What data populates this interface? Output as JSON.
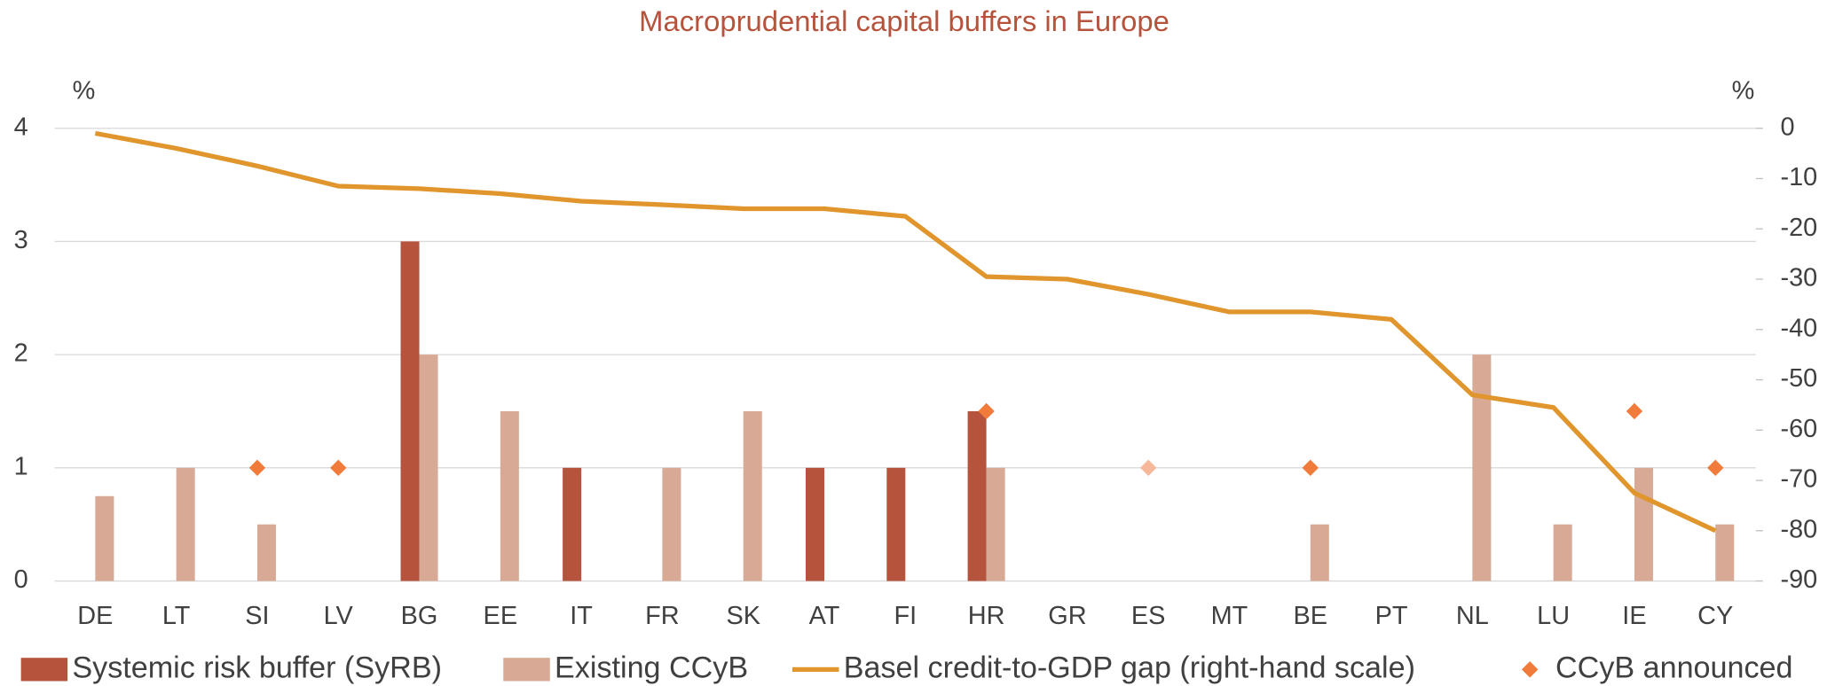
{
  "chart_data": {
    "type": "bar-line",
    "title": "Macroprudential capital buffers in Europe",
    "ylabel": "%",
    "y2label": "%",
    "categories": [
      "DE",
      "LT",
      "SI",
      "LV",
      "BG",
      "EE",
      "IT",
      "FR",
      "SK",
      "AT",
      "FI",
      "HR",
      "GR",
      "ES",
      "MT",
      "BE",
      "PT",
      "NL",
      "LU",
      "IE",
      "CY"
    ],
    "ylim": [
      0,
      4
    ],
    "yticks": [
      0,
      1,
      2,
      3,
      4
    ],
    "y2lim": [
      -90,
      0
    ],
    "y2ticks": [
      -90,
      -80,
      -70,
      -60,
      -50,
      -40,
      -30,
      -20,
      -10,
      0
    ],
    "grid": true,
    "series": [
      {
        "name": "Systemic risk buffer (SyRB)",
        "type": "bar",
        "color": "#b5533c",
        "values": [
          null,
          null,
          null,
          null,
          3,
          null,
          1,
          null,
          null,
          1,
          1,
          1.5,
          null,
          null,
          null,
          null,
          null,
          null,
          null,
          null,
          null
        ]
      },
      {
        "name": "Existing CCyB",
        "type": "bar",
        "color": "#d8a994",
        "values": [
          0.75,
          1,
          0.5,
          null,
          2,
          1.5,
          null,
          1,
          1.5,
          null,
          null,
          1,
          null,
          null,
          null,
          0.5,
          null,
          2,
          0.5,
          1,
          0.5
        ]
      },
      {
        "name": "Basel credit-to-GDP gap (right-hand scale)",
        "type": "line",
        "axis": "y2",
        "color": "#e0952d",
        "values": [
          -1,
          -4,
          -7.5,
          -11.5,
          -12,
          -13,
          -14.5,
          -15.2,
          -16,
          -16,
          -17.5,
          -29.5,
          -30,
          -33,
          -36.5,
          -36.5,
          -38,
          -53,
          -55.5,
          -72.5,
          -80
        ]
      },
      {
        "name": "CCyB announced",
        "type": "scatter",
        "color": "#f07b3a",
        "point_colors": {
          "13": "#f7b89a"
        },
        "values": [
          null,
          null,
          1,
          1,
          null,
          null,
          null,
          null,
          null,
          null,
          null,
          1.5,
          null,
          1,
          null,
          1,
          null,
          null,
          null,
          1.5,
          1
        ]
      }
    ]
  }
}
